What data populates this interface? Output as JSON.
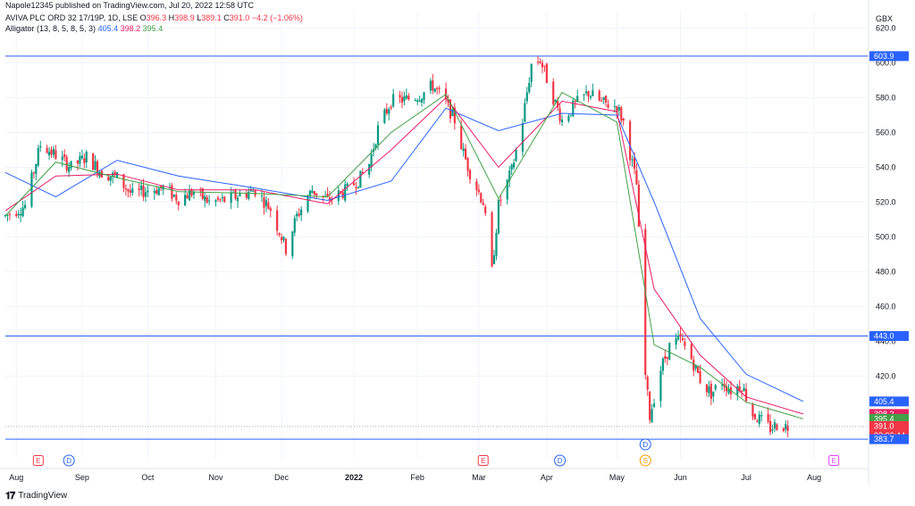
{
  "header": {
    "publisher": "Napole12345 published on TradingView.com, Jul 20, 2022 12:58 UTC"
  },
  "legend": {
    "symbol": "AVIVA PLC ORD 32 17/19P, 1D, LSE",
    "o_label": "O",
    "o": "396.3",
    "h_label": "H",
    "h": "398.9",
    "l_label": "L",
    "l": "389.1",
    "c_label": "C",
    "c": "391.0",
    "change": "−4.2 (−1.06%)",
    "indicator": "Alligator (13, 8, 5, 8, 5, 3)",
    "jaw_value": "405.4",
    "teeth_value": "398.2",
    "lips_value": "395.4"
  },
  "footer": {
    "brand": "TradingView"
  },
  "colors": {
    "up": "#089981",
    "down": "#f23645",
    "jaw": "#2962ff",
    "teeth": "#e91e63",
    "lips": "#43a047",
    "hline": "#2962ff",
    "earnings": "#f23645",
    "dividend": "#2962ff",
    "split": "#ff9800",
    "future_earnings": "#e040fb"
  },
  "chart_data": {
    "type": "candlestick",
    "currency": "GBX",
    "ylim": [
      373,
      630
    ],
    "y_ticks": [
      420,
      440,
      460,
      480,
      500,
      520,
      540,
      560,
      580,
      600,
      620
    ],
    "x_ticks": [
      "Aug",
      "Sep",
      "Oct",
      "Nov",
      "Dec",
      "2022",
      "Feb",
      "Mar",
      "Apr",
      "May",
      "Jun",
      "Jul",
      "Aug"
    ],
    "x_tick_dates": [
      "2021-08-02",
      "2021-09-01",
      "2021-10-01",
      "2021-11-01",
      "2021-12-01",
      "2022-01-03",
      "2022-02-01",
      "2022-03-01",
      "2022-04-01",
      "2022-05-03",
      "2022-06-01",
      "2022-07-01",
      "2022-08-01"
    ],
    "horizontal_lines": [
      603.9,
      443.0,
      383.7
    ],
    "price_labels": [
      {
        "text": "603.9",
        "value": 603.9,
        "kind": "hline"
      },
      {
        "text": "443.0",
        "value": 443.0,
        "kind": "hline"
      },
      {
        "text": "405.4",
        "value": 405.4,
        "kind": "jaw"
      },
      {
        "text": "398.2",
        "value": 398.2,
        "kind": "teeth"
      },
      {
        "text": "395.4",
        "value": 395.4,
        "kind": "lips"
      },
      {
        "text": "391.0",
        "value": 391.0,
        "kind": "last",
        "sub": "03:06:44"
      },
      {
        "text": "383.7",
        "value": 383.7,
        "kind": "hline"
      }
    ],
    "last_price": 391.0,
    "path_anchors": [
      [
        "2021-07-28",
        512
      ],
      [
        "2021-08-06",
        518
      ],
      [
        "2021-08-13",
        553
      ],
      [
        "2021-08-20",
        547
      ],
      [
        "2021-08-27",
        540
      ],
      [
        "2021-09-03",
        546
      ],
      [
        "2021-09-10",
        537
      ],
      [
        "2021-09-17",
        534
      ],
      [
        "2021-09-24",
        524
      ],
      [
        "2021-10-01",
        527
      ],
      [
        "2021-10-08",
        528
      ],
      [
        "2021-10-15",
        522
      ],
      [
        "2021-10-22",
        526
      ],
      [
        "2021-10-29",
        520
      ],
      [
        "2021-11-05",
        521
      ],
      [
        "2021-11-12",
        524
      ],
      [
        "2021-11-19",
        527
      ],
      [
        "2021-11-26",
        516
      ],
      [
        "2021-12-01",
        500
      ],
      [
        "2021-12-03",
        493
      ],
      [
        "2021-12-08",
        512
      ],
      [
        "2021-12-15",
        527
      ],
      [
        "2021-12-22",
        521
      ],
      [
        "2021-12-31",
        527
      ],
      [
        "2022-01-06",
        534
      ],
      [
        "2022-01-10",
        542
      ],
      [
        "2022-01-14",
        562
      ],
      [
        "2022-01-20",
        578
      ],
      [
        "2022-01-27",
        579
      ],
      [
        "2022-02-03",
        582
      ],
      [
        "2022-02-08",
        587
      ],
      [
        "2022-02-14",
        577
      ],
      [
        "2022-02-18",
        567
      ],
      [
        "2022-02-22",
        548
      ],
      [
        "2022-02-25",
        537
      ],
      [
        "2022-03-03",
        520
      ],
      [
        "2022-03-07",
        480
      ],
      [
        "2022-03-10",
        518
      ],
      [
        "2022-03-16",
        538
      ],
      [
        "2022-03-21",
        567
      ],
      [
        "2022-03-25",
        599
      ],
      [
        "2022-03-29",
        602
      ],
      [
        "2022-04-04",
        580
      ],
      [
        "2022-04-08",
        567
      ],
      [
        "2022-04-14",
        576
      ],
      [
        "2022-04-20",
        583
      ],
      [
        "2022-04-26",
        577
      ],
      [
        "2022-05-03",
        575
      ],
      [
        "2022-05-06",
        566
      ],
      [
        "2022-05-10",
        542
      ],
      [
        "2022-05-12",
        530
      ],
      [
        "2022-05-16",
        420
      ],
      [
        "2022-05-18",
        397
      ],
      [
        "2022-05-23",
        424
      ],
      [
        "2022-05-27",
        437
      ],
      [
        "2022-06-01",
        441
      ],
      [
        "2022-06-06",
        430
      ],
      [
        "2022-06-10",
        418
      ],
      [
        "2022-06-15",
        410
      ],
      [
        "2022-06-20",
        417
      ],
      [
        "2022-06-24",
        412
      ],
      [
        "2022-06-29",
        415
      ],
      [
        "2022-07-04",
        398
      ],
      [
        "2022-07-08",
        394
      ],
      [
        "2022-07-12",
        390
      ],
      [
        "2022-07-15",
        392
      ],
      [
        "2022-07-20",
        391
      ]
    ],
    "alligator": {
      "jaw": {
        "name": "Jaw",
        "points": [
          [
            "2021-07-28",
            537
          ],
          [
            "2021-08-20",
            523
          ],
          [
            "2021-09-17",
            544
          ],
          [
            "2021-10-15",
            535
          ],
          [
            "2021-11-19",
            528
          ],
          [
            "2021-12-22",
            521
          ],
          [
            "2022-01-20",
            532
          ],
          [
            "2022-02-14",
            574
          ],
          [
            "2022-03-10",
            561
          ],
          [
            "2022-04-08",
            571
          ],
          [
            "2022-05-03",
            570
          ],
          [
            "2022-05-20",
            520
          ],
          [
            "2022-06-10",
            453
          ],
          [
            "2022-07-01",
            421
          ],
          [
            "2022-07-27",
            405.4
          ]
        ]
      },
      "teeth": {
        "name": "Teeth",
        "points": [
          [
            "2021-07-28",
            515
          ],
          [
            "2021-08-20",
            535
          ],
          [
            "2021-09-17",
            536
          ],
          [
            "2021-10-15",
            527
          ],
          [
            "2021-11-19",
            527
          ],
          [
            "2021-12-22",
            519
          ],
          [
            "2022-01-20",
            550
          ],
          [
            "2022-02-14",
            580
          ],
          [
            "2022-03-10",
            540
          ],
          [
            "2022-04-08",
            578
          ],
          [
            "2022-05-03",
            572
          ],
          [
            "2022-05-20",
            470
          ],
          [
            "2022-06-10",
            432
          ],
          [
            "2022-07-01",
            408
          ],
          [
            "2022-07-27",
            398.2
          ]
        ]
      },
      "lips": {
        "name": "Lips",
        "points": [
          [
            "2021-07-28",
            512
          ],
          [
            "2021-08-20",
            543
          ],
          [
            "2021-09-17",
            534
          ],
          [
            "2021-10-15",
            526
          ],
          [
            "2021-11-19",
            525
          ],
          [
            "2021-12-22",
            523
          ],
          [
            "2022-01-20",
            560
          ],
          [
            "2022-02-14",
            582
          ],
          [
            "2022-03-10",
            522
          ],
          [
            "2022-04-08",
            583
          ],
          [
            "2022-05-03",
            566
          ],
          [
            "2022-05-20",
            438
          ],
          [
            "2022-06-10",
            425
          ],
          [
            "2022-07-01",
            405
          ],
          [
            "2022-07-27",
            395.4
          ]
        ]
      }
    },
    "events": [
      {
        "type": "earnings",
        "letter": "E",
        "date": "2021-08-12"
      },
      {
        "type": "dividend",
        "letter": "D",
        "date": "2021-08-26"
      },
      {
        "type": "earnings",
        "letter": "E",
        "date": "2022-03-03"
      },
      {
        "type": "dividend",
        "letter": "D",
        "date": "2022-04-07"
      },
      {
        "type": "dividend",
        "letter": "D",
        "date": "2022-05-16"
      },
      {
        "type": "split",
        "letter": "S",
        "date": "2022-05-16"
      },
      {
        "type": "future_earnings",
        "letter": "E",
        "date": "2022-08-10"
      }
    ]
  }
}
